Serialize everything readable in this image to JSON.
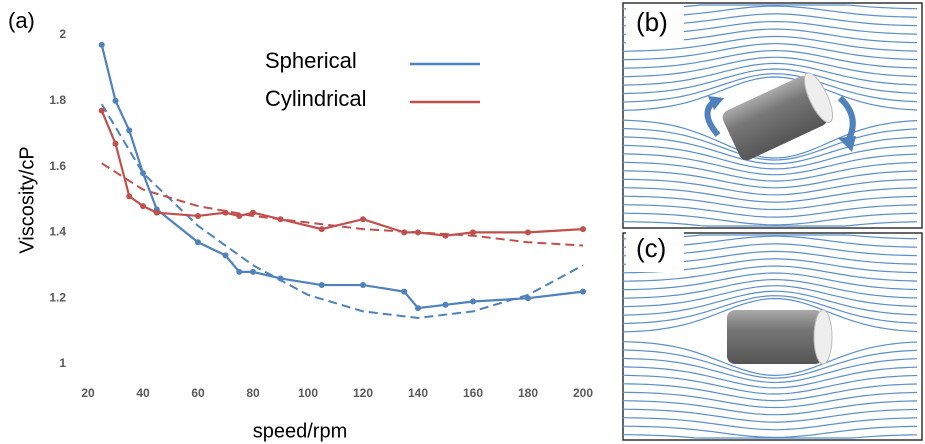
{
  "chart_data": {
    "type": "line",
    "panel_label": "(a)",
    "xlabel": "speed/rpm",
    "ylabel": "Viscosity/cP",
    "x": [
      25,
      30,
      35,
      40,
      45,
      60,
      70,
      75,
      80,
      90,
      105,
      120,
      135,
      140,
      150,
      160,
      180,
      200
    ],
    "series": [
      {
        "name": "Spherical",
        "color": "#4f81bd",
        "values": [
          1.97,
          1.8,
          1.71,
          1.58,
          1.47,
          1.37,
          1.33,
          1.28,
          1.28,
          1.26,
          1.24,
          1.24,
          1.22,
          1.17,
          1.18,
          1.19,
          1.2,
          1.22
        ]
      },
      {
        "name": "Cylindrical",
        "color": "#c0504d",
        "values": [
          1.77,
          1.67,
          1.51,
          1.48,
          1.46,
          1.45,
          1.46,
          1.45,
          1.46,
          1.44,
          1.41,
          1.44,
          1.4,
          1.4,
          1.39,
          1.4,
          1.4,
          1.41
        ]
      }
    ],
    "trendlines": [
      {
        "color": "#4f81bd",
        "x": [
          25,
          40,
          60,
          80,
          100,
          120,
          140,
          160,
          180,
          200
        ],
        "values": [
          1.79,
          1.58,
          1.42,
          1.3,
          1.21,
          1.16,
          1.14,
          1.16,
          1.21,
          1.3
        ]
      },
      {
        "color": "#c0504d",
        "x": [
          25,
          40,
          60,
          80,
          100,
          120,
          140,
          160,
          180,
          200
        ],
        "values": [
          1.61,
          1.53,
          1.48,
          1.45,
          1.43,
          1.41,
          1.4,
          1.39,
          1.37,
          1.36
        ]
      }
    ],
    "xlim": [
      20,
      200
    ],
    "xticks": [
      20,
      40,
      60,
      80,
      100,
      120,
      140,
      160,
      180,
      200
    ],
    "ylim": [
      1,
      2
    ],
    "yticks": [
      1,
      1.2,
      1.4,
      1.6,
      1.8,
      2
    ]
  },
  "panels": [
    {
      "label": "(b)"
    },
    {
      "label": "(c)"
    }
  ]
}
